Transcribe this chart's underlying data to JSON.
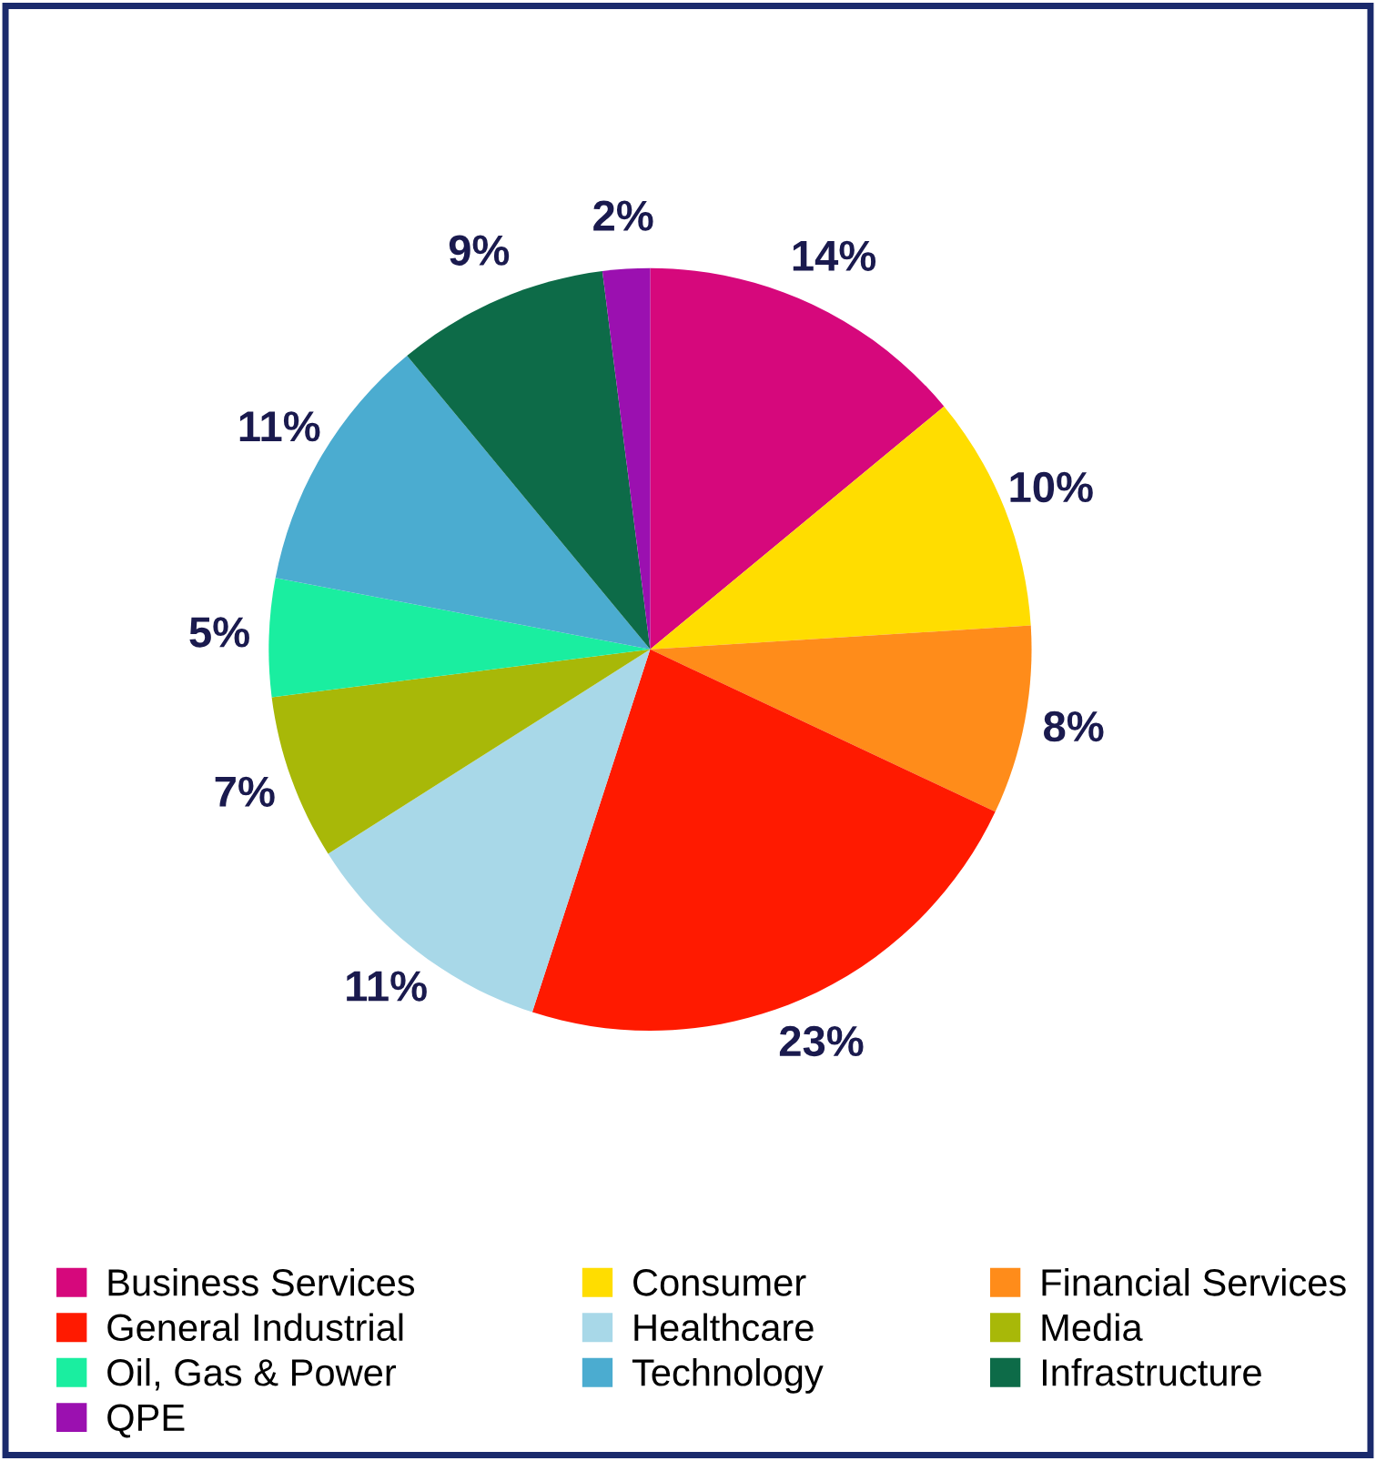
{
  "chart_data": {
    "type": "pie",
    "categories": [
      "Business Services",
      "Consumer",
      "Financial Services",
      "General Industrial",
      "Healthcare",
      "Media",
      "Oil, Gas & Power",
      "Technology",
      "Infrastructure",
      "QPE"
    ],
    "values": [
      14,
      10,
      8,
      23,
      11,
      7,
      5,
      11,
      9,
      2
    ],
    "colors": [
      "#d6087c",
      "#ffdd00",
      "#ff8c1a",
      "#ff1a00",
      "#a8d8e8",
      "#a8b808",
      "#1aeea0",
      "#4bacd0",
      "#0d6b48",
      "#9b10b0"
    ],
    "value_labels": [
      "14%",
      "10%",
      "8%",
      "23%",
      "11%",
      "7%",
      "5%",
      "11%",
      "9%",
      "2%"
    ],
    "legend": "bottom"
  }
}
